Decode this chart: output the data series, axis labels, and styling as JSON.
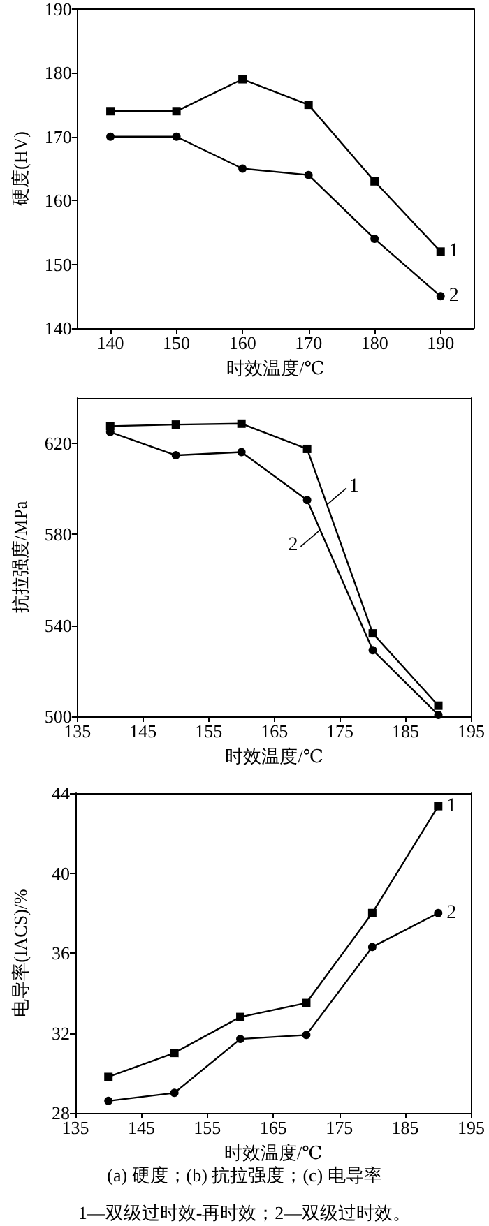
{
  "chart_data": [
    {
      "type": "line",
      "xlabel": "时效温度/℃",
      "ylabel": "硬度(HV)",
      "x": [
        140,
        150,
        160,
        170,
        180,
        190
      ],
      "xlim": [
        135,
        195
      ],
      "xticks": [
        140,
        150,
        160,
        170,
        180,
        190
      ],
      "ylim": [
        140,
        190
      ],
      "yticks": [
        140,
        150,
        160,
        170,
        180,
        190
      ],
      "grid": false,
      "legend": false,
      "series": [
        {
          "name": "1",
          "color": "#000000",
          "marker": "square",
          "values": [
            174,
            174,
            179,
            175,
            163,
            152
          ]
        },
        {
          "name": "2",
          "color": "#000000",
          "marker": "circle",
          "values": [
            170,
            170,
            165,
            164,
            154,
            145
          ]
        }
      ]
    },
    {
      "type": "line",
      "xlabel": "时效温度/℃",
      "ylabel": "抗拉强度/MPa",
      "x": [
        140,
        150,
        160,
        170,
        180,
        190
      ],
      "xlim": [
        135,
        195
      ],
      "xticks": [
        135,
        145,
        155,
        165,
        175,
        185,
        195
      ],
      "ylim": [
        500,
        640
      ],
      "yticks": [
        500,
        540,
        580,
        620
      ],
      "grid": false,
      "legend": false,
      "annotations": [
        {
          "text": "1",
          "x": 173,
          "y": 593
        },
        {
          "text": "2",
          "x": 172,
          "y": 582
        }
      ],
      "series": [
        {
          "color": "#000000",
          "marker": "square",
          "values": [
            627.6,
            628.3,
            628.7,
            617.6,
            536.5,
            504.7
          ]
        },
        {
          "color": "#000000",
          "marker": "circle",
          "values": [
            625,
            614.8,
            616.2,
            595.1,
            529.1,
            500.6
          ]
        }
      ]
    },
    {
      "type": "line",
      "xlabel": "时效温度/℃",
      "ylabel": "电导率(IACS)/%",
      "x": [
        140,
        150,
        160,
        170,
        180,
        190
      ],
      "xlim": [
        135,
        195
      ],
      "xticks": [
        135,
        145,
        155,
        165,
        175,
        185,
        195
      ],
      "ylim": [
        28,
        44
      ],
      "yticks": [
        28,
        32,
        36,
        40,
        44
      ],
      "grid": false,
      "legend": false,
      "annotations": [
        "(a) 硬度；(b) 抗拉强度；(c) 电导率",
        "1—双级过时效-再时效；2—双级过时效。"
      ],
      "series": [
        {
          "name": "1",
          "color": "#000000",
          "marker": "square",
          "values": [
            29.8,
            31.0,
            32.8,
            33.5,
            38.0,
            43.35
          ]
        },
        {
          "name": "2",
          "color": "#000000",
          "marker": "circle",
          "values": [
            28.6,
            29.0,
            31.7,
            31.9,
            36.3,
            38.0
          ]
        }
      ]
    }
  ]
}
